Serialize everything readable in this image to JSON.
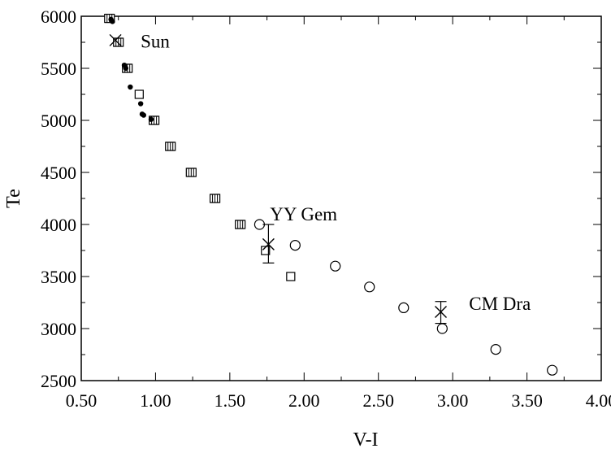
{
  "chart_data": {
    "type": "scatter",
    "xlabel": "V-I",
    "ylabel": "Te",
    "xlim": [
      0.5,
      4.0
    ],
    "ylim": [
      2500,
      6000
    ],
    "xticks": [
      "0.50",
      "1.00",
      "1.50",
      "2.00",
      "2.50",
      "3.00",
      "3.50",
      "4.00"
    ],
    "yticks": [
      "2500",
      "3000",
      "3500",
      "4000",
      "4500",
      "5000",
      "5500",
      "6000"
    ],
    "grid": false,
    "series": [
      {
        "marker": "square",
        "x": [
          0.69,
          0.75,
          0.81,
          0.89,
          0.99,
          1.1,
          1.24,
          1.4,
          1.57,
          1.74,
          1.91
        ],
        "y": [
          5980,
          5750,
          5500,
          5250,
          5000,
          4750,
          4500,
          4250,
          4000,
          3750,
          3500
        ]
      },
      {
        "marker": "square-lines",
        "x": [
          0.69,
          0.75,
          0.81,
          0.99,
          1.1,
          1.24,
          1.4,
          1.57
        ],
        "y": [
          5980,
          5750,
          5500,
          5000,
          4750,
          4500,
          4250,
          4000
        ]
      },
      {
        "marker": "circle-open",
        "x": [
          1.7,
          1.94,
          2.21,
          2.44,
          2.67,
          2.93,
          3.29,
          3.67
        ],
        "y": [
          4000,
          3800,
          3600,
          3400,
          3200,
          3000,
          2800,
          2600
        ]
      },
      {
        "marker": "dot",
        "x": [
          0.7,
          0.71,
          0.79,
          0.8,
          0.83,
          0.9,
          0.91,
          0.92,
          0.97
        ],
        "y": [
          5970,
          5950,
          5530,
          5500,
          5320,
          5160,
          5060,
          5050,
          5010
        ]
      },
      {
        "marker": "cross",
        "x": [
          0.73,
          1.76,
          2.92
        ],
        "y": [
          5770,
          3810,
          3160
        ],
        "yerr_low": [
          null,
          3630,
          3050
        ],
        "yerr_high": [
          null,
          4000,
          3260
        ]
      }
    ],
    "annotations": [
      {
        "text": "Sun",
        "x": 0.9,
        "y": 5700
      },
      {
        "text": "YY Gem",
        "x": 1.77,
        "y": 4040
      },
      {
        "text": "CM Dra",
        "x": 3.11,
        "y": 3180
      }
    ]
  }
}
